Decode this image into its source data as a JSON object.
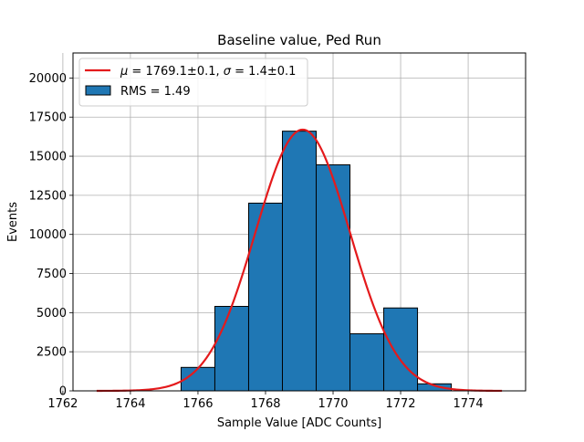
{
  "chart_data": {
    "type": "bar",
    "title": "Baseline value, Ped Run",
    "xlabel": "Sample Value [ADC Counts]",
    "ylabel": "Events",
    "xlim": [
      1762.3,
      1775.7
    ],
    "ylim": [
      0,
      21600
    ],
    "xticks": [
      1762,
      1764,
      1766,
      1768,
      1770,
      1772,
      1774
    ],
    "yticks": [
      0,
      2500,
      5000,
      7500,
      10000,
      12500,
      15000,
      17500,
      20000
    ],
    "ytick_labels": [
      "0",
      "2500",
      "5000",
      "7500",
      "10000",
      "12500",
      "15000",
      "17500",
      "20000"
    ],
    "grid": true,
    "legend_position": "top-left",
    "histogram": {
      "name": "RMS = 1.49",
      "color": "#1f77b4",
      "edge_color": "#000000",
      "bin_edges": [
        1765.5,
        1766.5,
        1767.5,
        1768.5,
        1769.5,
        1770.5,
        1771.5,
        1772.5,
        1773.5
      ],
      "counts": [
        1500,
        5400,
        12000,
        16600,
        14450,
        3650,
        5300,
        450
      ]
    },
    "fit": {
      "name_parts": [
        "μ",
        " = 1769.1±0.1, ",
        "σ",
        " = 1.4±0.1"
      ],
      "color": "#e41a1c",
      "mu": 1769.1,
      "sigma": 1.4,
      "amplitude": 16700,
      "x_range": [
        1763,
        1775
      ]
    }
  }
}
